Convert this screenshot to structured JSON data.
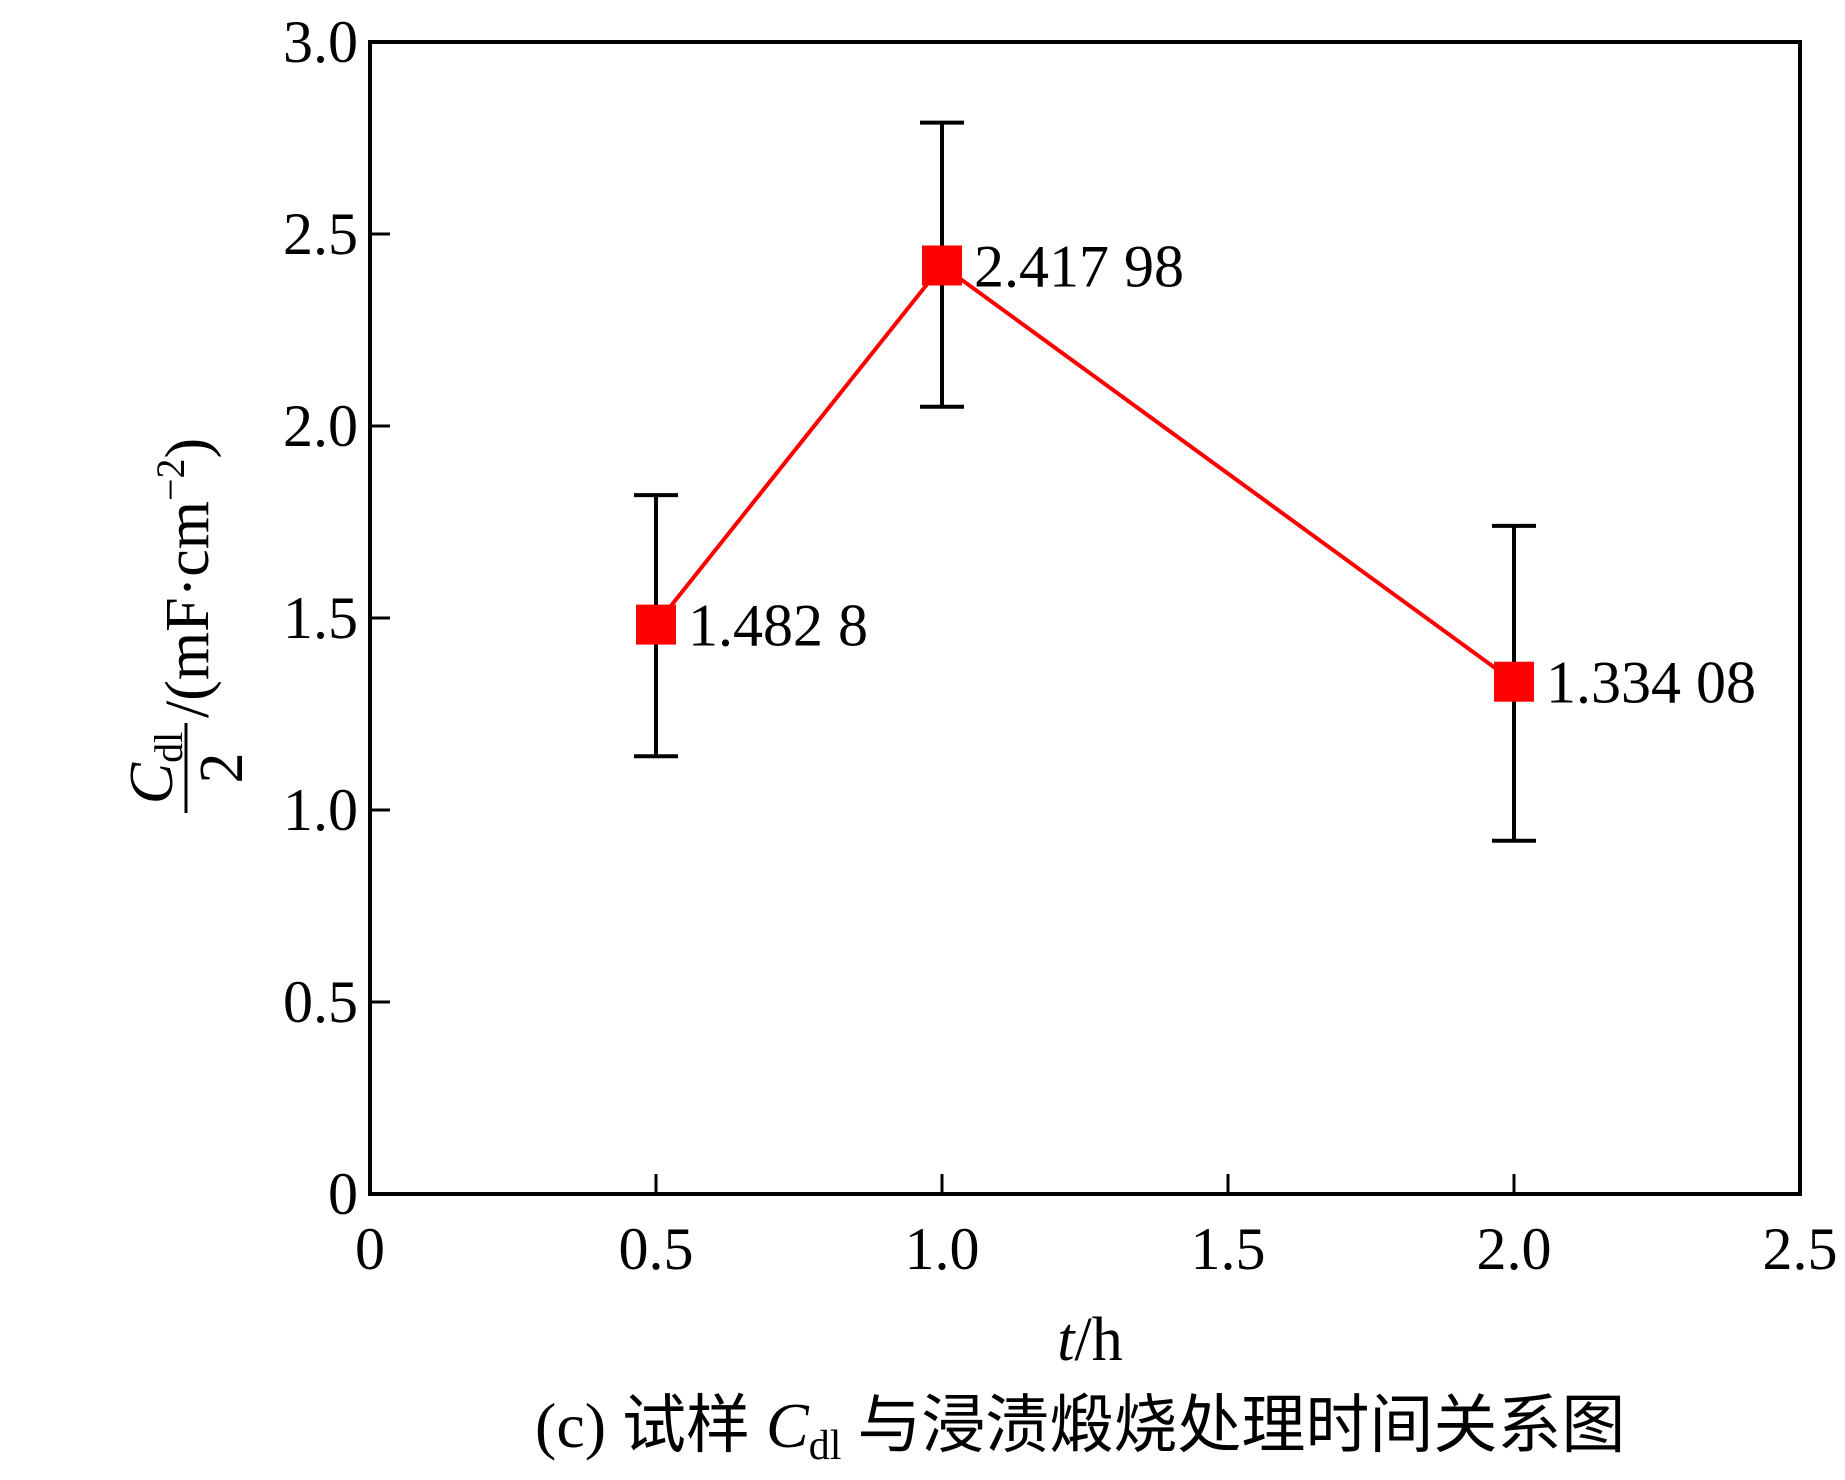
{
  "chart_data": {
    "type": "line",
    "x": [
      0.5,
      1.0,
      2.0
    ],
    "series": [
      {
        "values": [
          1.4828,
          2.41798,
          1.33408
        ],
        "error_low": [
          1.14,
          2.05,
          0.92
        ],
        "error_high": [
          1.82,
          2.79,
          1.74
        ],
        "data_labels": [
          "1.482 8",
          "2.417 98",
          "1.334 08"
        ],
        "color": "#ff0000",
        "marker": "square"
      }
    ],
    "xlim": [
      0,
      2.5
    ],
    "ylim": [
      0,
      3.0
    ],
    "x_ticks": [
      0,
      0.5,
      1.0,
      1.5,
      2.0,
      2.5
    ],
    "x_tick_labels": [
      "0",
      "0.5",
      "1.0",
      "1.5",
      "2.0",
      "2.5"
    ],
    "y_ticks": [
      0,
      0.5,
      1.0,
      1.5,
      2.0,
      2.5,
      3.0
    ],
    "y_tick_labels": [
      "0",
      "0.5",
      "1.0",
      "1.5",
      "2.0",
      "2.5",
      "3.0"
    ],
    "xlabel": {
      "var": "t",
      "unit": "/h"
    },
    "ylabel": {
      "numerator_main": "C",
      "numerator_sub": "dl",
      "denominator": "2",
      "unit_prefix": "/(mF·cm",
      "unit_sup": "−2",
      "unit_suffix": ")"
    },
    "caption": {
      "prefix": "(c) 试样 ",
      "var": "C",
      "sub": "dl",
      "suffix": " 与浸渍煅烧处理时间关系图"
    },
    "grid": false,
    "axis_color": "#000000",
    "errorbar_color": "#000000"
  }
}
